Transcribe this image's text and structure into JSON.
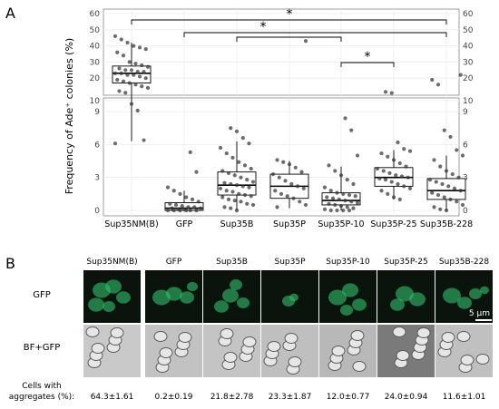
{
  "panel_a_label": "A",
  "panel_b_label": "B",
  "y_axis_label": "Frequency of Ade⁺ colonies (%)",
  "top_ticks": [
    "10",
    "20",
    "30",
    "40",
    "50",
    "60"
  ],
  "bottom_ticks": [
    "0",
    "3",
    "6",
    "9"
  ],
  "significance_mark": "*",
  "strains": [
    "Sup35NM(B)",
    "GFP",
    "Sup35B",
    "Sup35P",
    "Sup35P-10",
    "Sup35P-25",
    "Sup35B-228"
  ],
  "row_labels": [
    "GFP",
    "BF+GFP"
  ],
  "scale_bar_label": "5 μm",
  "aggregates_label_line1": "Cells with",
  "aggregates_label_line2": "aggregates (%):",
  "aggregates_values": [
    "64.3±1.61",
    "0.2±0.19",
    "21.8±2.78",
    "23.3±1.87",
    "12.0±0.77",
    "24.0±0.94",
    "11.6±1.01"
  ],
  "colors": {
    "gfp_background": "#0a140c",
    "gfp_cell": "#2fbf6a",
    "bf_background": "#bdbdbd",
    "box_fill": "#ffffff",
    "point": "#333333"
  },
  "chart_data": {
    "type": "box",
    "categories": [
      "Sup35NM(B)",
      "GFP",
      "Sup35B",
      "Sup35P",
      "Sup35P-10",
      "Sup35P-25",
      "Sup35B-228"
    ],
    "ylabel": "Frequency of Ade⁺ colonies (%)",
    "axis_break": {
      "lower_range": [
        0,
        10
      ],
      "upper_range": [
        10,
        60
      ]
    },
    "boxes": [
      {
        "q1": 17,
        "median": 23,
        "q3": 27.5,
        "whisker_low": 6.3,
        "whisker_high": 42
      },
      {
        "q1": 0,
        "median": 0.2,
        "q3": 0.7,
        "whisker_low": 0,
        "whisker_high": 1.8
      },
      {
        "q1": 1.4,
        "median": 2.3,
        "q3": 3.5,
        "whisker_low": 0,
        "whisker_high": 6.3
      },
      {
        "q1": 1.1,
        "median": 2.2,
        "q3": 3.3,
        "whisker_low": 0.2,
        "whisker_high": 4.5
      },
      {
        "q1": 0.5,
        "median": 0.9,
        "q3": 1.6,
        "whisker_low": 0,
        "whisker_high": 4.0
      },
      {
        "q1": 2.2,
        "median": 3.0,
        "q3": 3.9,
        "whisker_low": 1.0,
        "whisker_high": 5.5
      },
      {
        "q1": 1.0,
        "median": 1.8,
        "q3": 2.9,
        "whisker_low": 0,
        "whisker_high": 5.0
      }
    ],
    "points": [
      [
        46,
        44,
        42,
        40,
        39,
        38,
        36,
        34,
        30,
        29,
        28,
        27,
        26,
        25,
        25,
        24,
        24,
        23,
        23,
        22,
        22,
        21,
        20,
        19,
        18,
        17,
        16,
        15,
        14,
        12,
        11,
        9.7,
        9.1,
        6.4,
        6.1
      ],
      [
        5.3,
        3.5,
        2.1,
        1.8,
        1.5,
        1.2,
        1.0,
        0.8,
        0.6,
        0.5,
        0.4,
        0.3,
        0.3,
        0.2,
        0.2,
        0.1,
        0.1,
        0,
        0,
        0,
        0,
        0,
        0
      ],
      [
        7.5,
        7.2,
        6.6,
        6.1,
        5.7,
        5.2,
        4.8,
        4.4,
        4.1,
        3.8,
        3.6,
        3.4,
        3.2,
        3.0,
        2.8,
        2.6,
        2.5,
        2.4,
        2.3,
        2.2,
        2.1,
        2.0,
        1.8,
        1.7,
        1.5,
        1.4,
        1.3,
        1.2,
        1.0,
        0.9,
        0.8,
        0.6,
        0.5,
        0.3,
        0.2,
        0
      ],
      [
        43,
        4.6,
        4.4,
        4.2,
        3.9,
        3.5,
        3.3,
        3.0,
        2.7,
        2.4,
        2.2,
        2.0,
        1.8,
        1.5,
        1.3,
        1.1,
        0.8,
        0.5,
        0.3
      ],
      [
        8.4,
        7.3,
        5.0,
        4.1,
        3.6,
        3.2,
        2.8,
        2.4,
        2.1,
        1.8,
        1.6,
        1.5,
        1.4,
        1.3,
        1.2,
        1.1,
        1.0,
        0.9,
        0.8,
        0.7,
        0.6,
        0.5,
        0.4,
        0.3,
        0.2,
        0.1,
        0,
        0,
        0,
        0
      ],
      [
        11.5,
        10.8,
        6.2,
        5.6,
        5.4,
        5.2,
        4.9,
        4.6,
        4.3,
        4.0,
        3.8,
        3.6,
        3.4,
        3.2,
        3.1,
        3.0,
        2.9,
        2.8,
        2.6,
        2.4,
        2.2,
        2.0,
        1.8,
        1.5,
        1.2,
        1.0
      ],
      [
        22,
        19,
        16,
        7.3,
        6.7,
        5.5,
        5.0,
        4.6,
        4.0,
        3.6,
        3.3,
        3.0,
        2.8,
        2.6,
        2.4,
        2.2,
        2.0,
        1.8,
        1.6,
        1.4,
        1.2,
        1.0,
        0.8,
        0.5,
        0.3,
        0.1,
        0
      ]
    ],
    "significance": [
      {
        "from": "Sup35NM(B)",
        "to": "Sup35B-228",
        "label": "*"
      },
      {
        "from": "GFP",
        "to": "Sup35B-228",
        "label": "*"
      },
      {
        "from": "Sup35B",
        "to": "Sup35P-10",
        "label": "*"
      },
      {
        "from": "Sup35P-10",
        "to": "Sup35P-25",
        "label": "*"
      }
    ]
  }
}
